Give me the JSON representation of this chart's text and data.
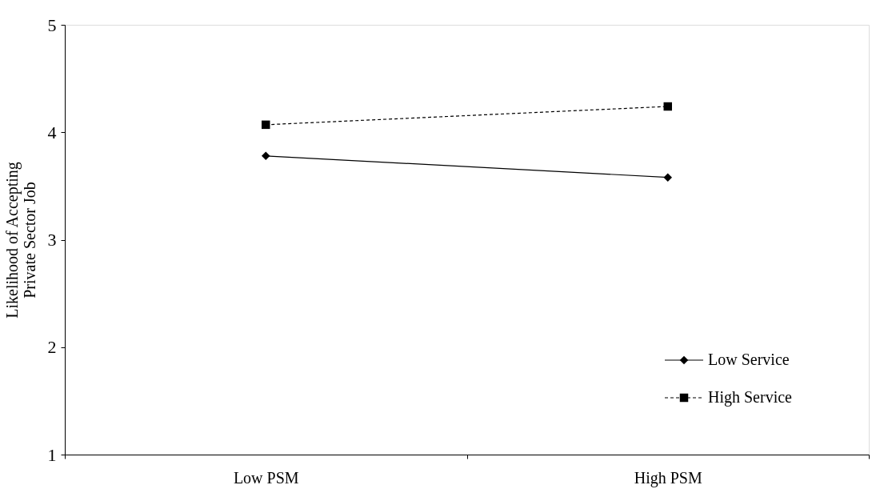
{
  "chart_data": {
    "type": "line",
    "ylabel": "Likelihood of Accepting\nPrivate Sector Job",
    "categories": [
      "Low PSM",
      "High PSM"
    ],
    "series": [
      {
        "name": "Low Service",
        "color": "#000000",
        "values": [
          3.78,
          3.58
        ],
        "marker": "diamond",
        "line_style": "solid"
      },
      {
        "name": "High Service",
        "color": "#000000",
        "values": [
          4.07,
          4.24
        ],
        "marker": "square",
        "line_style": "dashed"
      }
    ],
    "ylim": [
      1,
      5
    ],
    "yticks": [
      1,
      2,
      3,
      4,
      5
    ],
    "grid": false,
    "legend": "bottom right"
  }
}
